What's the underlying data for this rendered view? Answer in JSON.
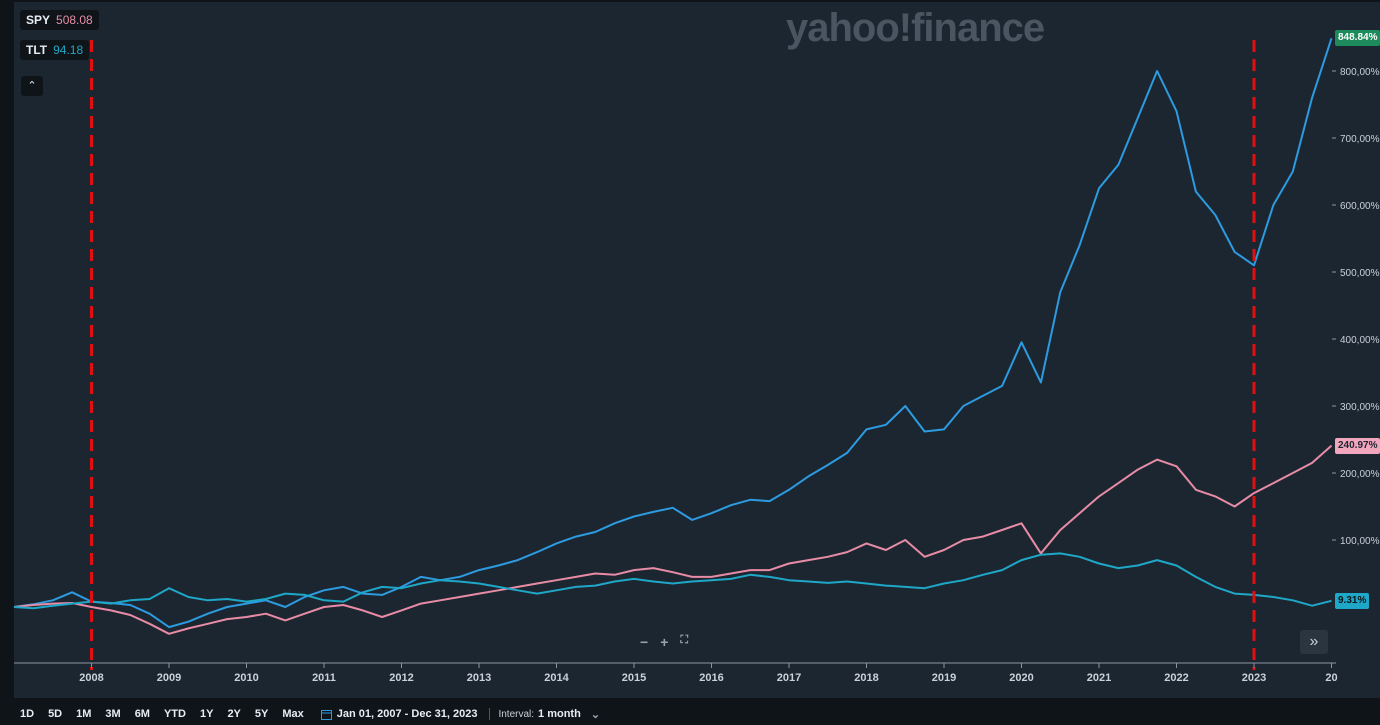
{
  "watermark": "yahoo!finance",
  "legend": [
    {
      "symbol": "SPY",
      "value": "508.08",
      "color": "#e88ca6"
    },
    {
      "symbol": "TLT",
      "value": "94.18",
      "color": "#1fa7c7"
    }
  ],
  "collapse_icon": "chevron-up-icon",
  "zoom_controls": {
    "zoom_out": "−",
    "zoom_in": "+",
    "fit": "⛶"
  },
  "jump_to_latest": "»",
  "price_tags": [
    {
      "label": "848.84%",
      "bg": "#1c8a5a",
      "color": "#ffffff",
      "y": 848.84
    },
    {
      "label": "240.97%",
      "bg": "#f2a6bd",
      "color": "#1c2631",
      "y": 240.97
    },
    {
      "label": "9.31%",
      "bg": "#1fa7c7",
      "color": "#0f1419",
      "y": 9.31
    }
  ],
  "bottom_bar": {
    "ranges": [
      "1D",
      "5D",
      "1M",
      "3M",
      "6M",
      "YTD",
      "1Y",
      "2Y",
      "5Y",
      "Max"
    ],
    "date_range": "Jan 01, 2007 - Dec 31, 2023",
    "interval_label": "Interval:",
    "interval_value": "1 month"
  },
  "chart_data": {
    "type": "line",
    "title": "",
    "xlabel": "",
    "ylabel": "",
    "x_tick_labels": [
      "2008",
      "2009",
      "2010",
      "2011",
      "2012",
      "2013",
      "2014",
      "2015",
      "2016",
      "2017",
      "2018",
      "2019",
      "2020",
      "2021",
      "2022",
      "2023",
      "20"
    ],
    "y_tick_labels": [
      "100,00%",
      "200,00%",
      "300,00%",
      "400,00%",
      "500,00%",
      "600,00%",
      "700,00%",
      "800,00%"
    ],
    "ylim": [
      -40,
      870
    ],
    "xlim": [
      2007.0,
      2024.0
    ],
    "grid": false,
    "vlines": [
      {
        "x": 2008.0,
        "color": "#e01010",
        "style": "dashed"
      },
      {
        "x": 2023.0,
        "color": "#e01010",
        "style": "dashed"
      }
    ],
    "series": [
      {
        "color": "#2c9be0",
        "points": [
          [
            2007.0,
            0
          ],
          [
            2007.25,
            4
          ],
          [
            2007.5,
            10
          ],
          [
            2007.75,
            22
          ],
          [
            2008.0,
            8
          ],
          [
            2008.25,
            6
          ],
          [
            2008.5,
            3
          ],
          [
            2008.75,
            -10
          ],
          [
            2009.0,
            -30
          ],
          [
            2009.25,
            -22
          ],
          [
            2009.5,
            -10
          ],
          [
            2009.75,
            0
          ],
          [
            2010.0,
            5
          ],
          [
            2010.25,
            10
          ],
          [
            2010.5,
            0
          ],
          [
            2010.75,
            15
          ],
          [
            2011.0,
            25
          ],
          [
            2011.25,
            30
          ],
          [
            2011.5,
            20
          ],
          [
            2011.75,
            18
          ],
          [
            2012.0,
            30
          ],
          [
            2012.25,
            45
          ],
          [
            2012.5,
            40
          ],
          [
            2012.75,
            45
          ],
          [
            2013.0,
            55
          ],
          [
            2013.25,
            62
          ],
          [
            2013.5,
            70
          ],
          [
            2013.75,
            82
          ],
          [
            2014.0,
            95
          ],
          [
            2014.25,
            105
          ],
          [
            2014.5,
            112
          ],
          [
            2014.75,
            125
          ],
          [
            2015.0,
            135
          ],
          [
            2015.25,
            142
          ],
          [
            2015.5,
            148
          ],
          [
            2015.75,
            130
          ],
          [
            2016.0,
            140
          ],
          [
            2016.25,
            152
          ],
          [
            2016.5,
            160
          ],
          [
            2016.75,
            158
          ],
          [
            2017.0,
            175
          ],
          [
            2017.25,
            195
          ],
          [
            2017.5,
            212
          ],
          [
            2017.75,
            230
          ],
          [
            2018.0,
            265
          ],
          [
            2018.25,
            272
          ],
          [
            2018.5,
            300
          ],
          [
            2018.75,
            262
          ],
          [
            2019.0,
            265
          ],
          [
            2019.25,
            300
          ],
          [
            2019.5,
            315
          ],
          [
            2019.75,
            330
          ],
          [
            2020.0,
            395
          ],
          [
            2020.25,
            335
          ],
          [
            2020.5,
            470
          ],
          [
            2020.75,
            540
          ],
          [
            2021.0,
            625
          ],
          [
            2021.25,
            660
          ],
          [
            2021.5,
            730
          ],
          [
            2021.75,
            800
          ],
          [
            2022.0,
            740
          ],
          [
            2022.25,
            620
          ],
          [
            2022.5,
            585
          ],
          [
            2022.75,
            530
          ],
          [
            2023.0,
            510
          ],
          [
            2023.25,
            600
          ],
          [
            2023.5,
            650
          ],
          [
            2023.75,
            760
          ],
          [
            2024.0,
            848.84
          ]
        ]
      },
      {
        "color": "#e88ca6",
        "points": [
          [
            2007.0,
            0
          ],
          [
            2007.25,
            3
          ],
          [
            2007.5,
            5
          ],
          [
            2007.75,
            6
          ],
          [
            2008.0,
            0
          ],
          [
            2008.25,
            -5
          ],
          [
            2008.5,
            -12
          ],
          [
            2008.75,
            -25
          ],
          [
            2009.0,
            -40
          ],
          [
            2009.25,
            -32
          ],
          [
            2009.5,
            -25
          ],
          [
            2009.75,
            -18
          ],
          [
            2010.0,
            -15
          ],
          [
            2010.25,
            -10
          ],
          [
            2010.5,
            -20
          ],
          [
            2010.75,
            -10
          ],
          [
            2011.0,
            0
          ],
          [
            2011.25,
            3
          ],
          [
            2011.5,
            -5
          ],
          [
            2011.75,
            -15
          ],
          [
            2012.0,
            -5
          ],
          [
            2012.25,
            5
          ],
          [
            2012.5,
            10
          ],
          [
            2012.75,
            15
          ],
          [
            2013.0,
            20
          ],
          [
            2013.25,
            25
          ],
          [
            2013.5,
            30
          ],
          [
            2013.75,
            35
          ],
          [
            2014.0,
            40
          ],
          [
            2014.25,
            45
          ],
          [
            2014.5,
            50
          ],
          [
            2014.75,
            48
          ],
          [
            2015.0,
            55
          ],
          [
            2015.25,
            58
          ],
          [
            2015.5,
            52
          ],
          [
            2015.75,
            45
          ],
          [
            2016.0,
            45
          ],
          [
            2016.25,
            50
          ],
          [
            2016.5,
            55
          ],
          [
            2016.75,
            55
          ],
          [
            2017.0,
            65
          ],
          [
            2017.25,
            70
          ],
          [
            2017.5,
            75
          ],
          [
            2017.75,
            82
          ],
          [
            2018.0,
            95
          ],
          [
            2018.25,
            85
          ],
          [
            2018.5,
            100
          ],
          [
            2018.75,
            75
          ],
          [
            2019.0,
            85
          ],
          [
            2019.25,
            100
          ],
          [
            2019.5,
            105
          ],
          [
            2019.75,
            115
          ],
          [
            2020.0,
            125
          ],
          [
            2020.25,
            80
          ],
          [
            2020.5,
            115
          ],
          [
            2020.75,
            140
          ],
          [
            2021.0,
            165
          ],
          [
            2021.25,
            185
          ],
          [
            2021.5,
            205
          ],
          [
            2021.75,
            220
          ],
          [
            2022.0,
            210
          ],
          [
            2022.25,
            175
          ],
          [
            2022.5,
            165
          ],
          [
            2022.75,
            150
          ],
          [
            2023.0,
            170
          ],
          [
            2023.25,
            185
          ],
          [
            2023.5,
            200
          ],
          [
            2023.75,
            215
          ],
          [
            2024.0,
            240.97
          ]
        ]
      },
      {
        "color": "#1fa7c7",
        "points": [
          [
            2007.0,
            0
          ],
          [
            2007.25,
            -2
          ],
          [
            2007.5,
            2
          ],
          [
            2007.75,
            5
          ],
          [
            2008.0,
            8
          ],
          [
            2008.25,
            5
          ],
          [
            2008.5,
            10
          ],
          [
            2008.75,
            12
          ],
          [
            2009.0,
            28
          ],
          [
            2009.25,
            15
          ],
          [
            2009.5,
            10
          ],
          [
            2009.75,
            12
          ],
          [
            2010.0,
            8
          ],
          [
            2010.25,
            12
          ],
          [
            2010.5,
            20
          ],
          [
            2010.75,
            18
          ],
          [
            2011.0,
            10
          ],
          [
            2011.25,
            8
          ],
          [
            2011.5,
            22
          ],
          [
            2011.75,
            30
          ],
          [
            2012.0,
            28
          ],
          [
            2012.25,
            35
          ],
          [
            2012.5,
            40
          ],
          [
            2012.75,
            38
          ],
          [
            2013.0,
            35
          ],
          [
            2013.25,
            30
          ],
          [
            2013.5,
            25
          ],
          [
            2013.75,
            20
          ],
          [
            2014.0,
            25
          ],
          [
            2014.25,
            30
          ],
          [
            2014.5,
            32
          ],
          [
            2014.75,
            38
          ],
          [
            2015.0,
            42
          ],
          [
            2015.25,
            38
          ],
          [
            2015.5,
            35
          ],
          [
            2015.75,
            38
          ],
          [
            2016.0,
            40
          ],
          [
            2016.25,
            42
          ],
          [
            2016.5,
            48
          ],
          [
            2016.75,
            45
          ],
          [
            2017.0,
            40
          ],
          [
            2017.25,
            38
          ],
          [
            2017.5,
            36
          ],
          [
            2017.75,
            38
          ],
          [
            2018.0,
            35
          ],
          [
            2018.25,
            32
          ],
          [
            2018.5,
            30
          ],
          [
            2018.75,
            28
          ],
          [
            2019.0,
            35
          ],
          [
            2019.25,
            40
          ],
          [
            2019.5,
            48
          ],
          [
            2019.75,
            55
          ],
          [
            2020.0,
            70
          ],
          [
            2020.25,
            78
          ],
          [
            2020.5,
            80
          ],
          [
            2020.75,
            75
          ],
          [
            2021.0,
            65
          ],
          [
            2021.25,
            58
          ],
          [
            2021.5,
            62
          ],
          [
            2021.75,
            70
          ],
          [
            2022.0,
            62
          ],
          [
            2022.25,
            45
          ],
          [
            2022.5,
            30
          ],
          [
            2022.75,
            20
          ],
          [
            2023.0,
            18
          ],
          [
            2023.25,
            15
          ],
          [
            2023.5,
            10
          ],
          [
            2023.75,
            2
          ],
          [
            2024.0,
            9.31
          ]
        ]
      }
    ]
  }
}
